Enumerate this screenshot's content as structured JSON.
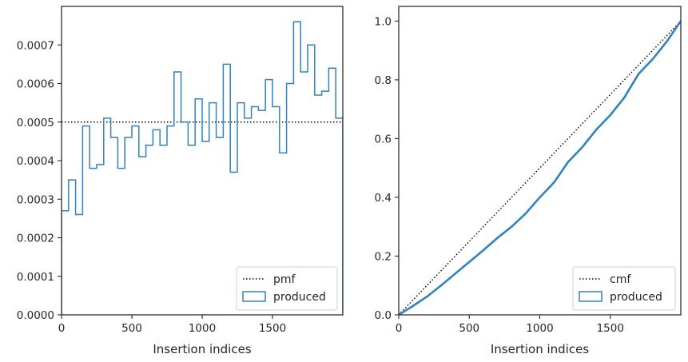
{
  "chart_data": [
    {
      "type": "histogram-step",
      "xlabel": "Insertion indices",
      "ylabel": "",
      "xlim": [
        0,
        2000
      ],
      "ylim": [
        0,
        0.0008
      ],
      "xticks": [
        0,
        500,
        1000,
        1500
      ],
      "xtick_labels": [
        "0",
        "500",
        "1000",
        "1500"
      ],
      "yticks": [
        0,
        0.0001,
        0.0002,
        0.0003,
        0.0004,
        0.0005,
        0.0006,
        0.0007
      ],
      "ytick_labels": [
        "0.0000",
        "0.0001",
        "0.0002",
        "0.0003",
        "0.0004",
        "0.0005",
        "0.0006",
        "0.0007"
      ],
      "bin_width": 50,
      "series": [
        {
          "name": "pmf",
          "style": "dotted",
          "color": "#000000",
          "x": [
            0,
            2000
          ],
          "y": [
            0.0005,
            0.0005
          ]
        },
        {
          "name": "produced",
          "style": "step",
          "color": "#3182bd",
          "bin_edges_start": 0,
          "values": [
            0.00027,
            0.00035,
            0.00026,
            0.00049,
            0.00038,
            0.00039,
            0.00051,
            0.00046,
            0.00038,
            0.00046,
            0.00049,
            0.00041,
            0.00044,
            0.00048,
            0.00044,
            0.00049,
            0.00063,
            0.0005,
            0.00044,
            0.00056,
            0.00045,
            0.00055,
            0.00046,
            0.00065,
            0.00037,
            0.00055,
            0.00051,
            0.00054,
            0.00053,
            0.00061,
            0.00054,
            0.00042,
            0.0006,
            0.00076,
            0.00063,
            0.0007,
            0.00057,
            0.00058,
            0.00064,
            0.00051
          ]
        }
      ],
      "legend": {
        "position": "bottom-right",
        "entries": [
          "pmf",
          "produced"
        ]
      }
    },
    {
      "type": "line",
      "xlabel": "Insertion indices",
      "ylabel": "",
      "xlim": [
        0,
        2000
      ],
      "ylim": [
        0,
        1.05
      ],
      "xticks": [
        0,
        500,
        1000,
        1500
      ],
      "xtick_labels": [
        "0",
        "500",
        "1000",
        "1500"
      ],
      "yticks": [
        0,
        0.2,
        0.4,
        0.6,
        0.8,
        1.0
      ],
      "ytick_labels": [
        "0.0",
        "0.2",
        "0.4",
        "0.6",
        "0.8",
        "1.0"
      ],
      "series": [
        {
          "name": "cmf",
          "style": "dotted",
          "color": "#000000",
          "x": [
            0,
            2000
          ],
          "y": [
            0,
            1.0
          ]
        },
        {
          "name": "produced",
          "style": "step",
          "color": "#3182bd",
          "x": [
            0,
            100,
            200,
            300,
            400,
            500,
            600,
            700,
            800,
            900,
            1000,
            1100,
            1200,
            1300,
            1400,
            1500,
            1600,
            1700,
            1800,
            1900,
            2000
          ],
          "y": [
            0,
            0.03,
            0.062,
            0.1,
            0.14,
            0.18,
            0.22,
            0.262,
            0.3,
            0.345,
            0.4,
            0.45,
            0.52,
            0.57,
            0.63,
            0.68,
            0.74,
            0.82,
            0.87,
            0.93,
            1.0
          ]
        }
      ],
      "legend": {
        "position": "bottom-right",
        "entries": [
          "cmf",
          "produced"
        ]
      }
    }
  ]
}
